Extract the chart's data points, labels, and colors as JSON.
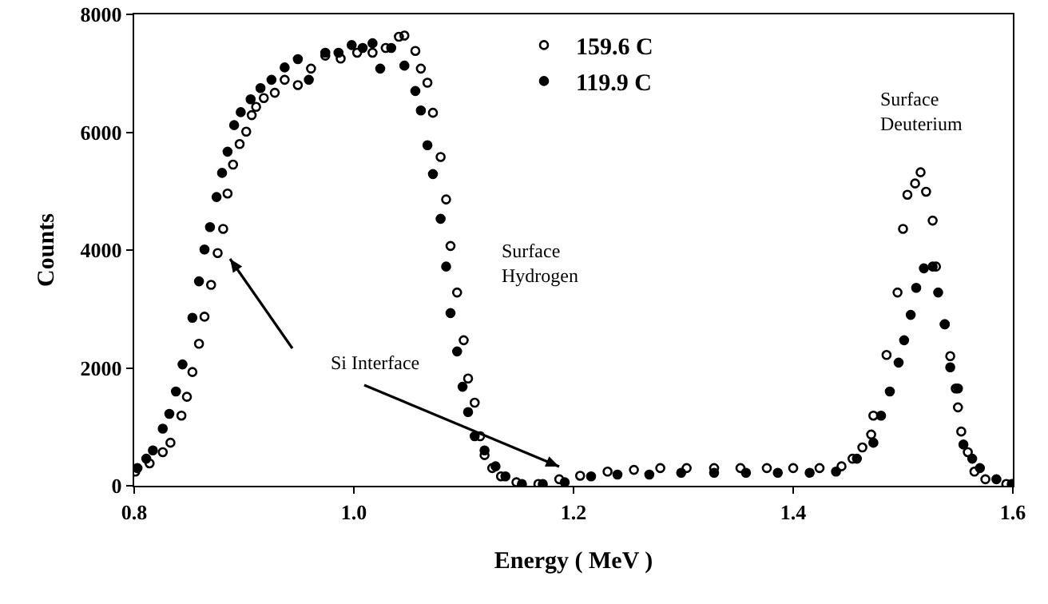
{
  "chart_data": {
    "type": "scatter",
    "xlabel": "Energy ( MeV )",
    "ylabel": "Counts",
    "xlim": [
      0.8,
      1.6
    ],
    "ylim": [
      0,
      8000
    ],
    "xticks": [
      0.8,
      {
        "value": 1,
        "label": "1.0"
      },
      1.2,
      1.4,
      1.6
    ],
    "yticks": [
      0,
      2000,
      4000,
      6000,
      8000
    ],
    "grid": false,
    "legend": "top",
    "marker": "circle",
    "series": [
      {
        "name": "159.6 C",
        "color": "#000000",
        "x": [
          0.801,
          0.814,
          0.826,
          0.833,
          0.843,
          0.848,
          0.853,
          0.859,
          0.864,
          0.87,
          0.876,
          0.881,
          0.885,
          0.89,
          0.896,
          0.902,
          0.907,
          0.911,
          0.918,
          0.928,
          0.937,
          0.949,
          0.961,
          0.974,
          0.988,
          1.003,
          1.017,
          1.029,
          1.041,
          1.046,
          1.056,
          1.061,
          1.067,
          1.072,
          1.079,
          1.084,
          1.088,
          1.094,
          1.1,
          1.104,
          1.11,
          1.115,
          1.119,
          1.126,
          1.134,
          1.148,
          1.168,
          1.187,
          1.206,
          1.231,
          1.255,
          1.279,
          1.303,
          1.328,
          1.352,
          1.376,
          1.4,
          1.424,
          1.444,
          1.454,
          1.463,
          1.471,
          1.473,
          1.485,
          1.495,
          1.5,
          1.504,
          1.511,
          1.516,
          1.521,
          1.527,
          1.53,
          1.538,
          1.543,
          1.548,
          1.55,
          1.553,
          1.559,
          1.565,
          1.575,
          1.594
        ],
        "values": [
          240,
          380,
          570,
          730,
          1190,
          1510,
          1930,
          2410,
          2870,
          3410,
          3950,
          4360,
          4960,
          5450,
          5800,
          6010,
          6290,
          6430,
          6580,
          6670,
          6890,
          6800,
          7080,
          7300,
          7250,
          7350,
          7350,
          7430,
          7620,
          7640,
          7380,
          7080,
          6840,
          6330,
          5580,
          4860,
          4070,
          3280,
          2470,
          1820,
          1410,
          840,
          520,
          300,
          160,
          60,
          30,
          110,
          170,
          240,
          270,
          300,
          300,
          300,
          300,
          300,
          300,
          300,
          330,
          460,
          650,
          870,
          1190,
          2220,
          3280,
          4360,
          4940,
          5130,
          5320,
          4990,
          4500,
          3720,
          2740,
          2200,
          1650,
          1330,
          920,
          570,
          240,
          110,
          30
        ]
      },
      {
        "name": "119.9 C",
        "color": "#000000",
        "x": [
          0.803,
          0.811,
          0.817,
          0.826,
          0.832,
          0.838,
          0.844,
          0.853,
          0.859,
          0.864,
          0.869,
          0.875,
          0.88,
          0.885,
          0.891,
          0.897,
          0.906,
          0.915,
          0.925,
          0.937,
          0.949,
          0.959,
          0.974,
          0.986,
          0.998,
          1.008,
          1.017,
          1.024,
          1.034,
          1.046,
          1.056,
          1.061,
          1.067,
          1.072,
          1.079,
          1.084,
          1.088,
          1.094,
          1.099,
          1.104,
          1.11,
          1.119,
          1.129,
          1.138,
          1.153,
          1.172,
          1.192,
          1.216,
          1.24,
          1.269,
          1.298,
          1.328,
          1.357,
          1.386,
          1.415,
          1.439,
          1.458,
          1.473,
          1.48,
          1.488,
          1.496,
          1.501,
          1.507,
          1.512,
          1.519,
          1.527,
          1.532,
          1.538,
          1.543,
          1.55,
          1.555,
          1.563,
          1.57,
          1.585,
          1.599
        ],
        "values": [
          300,
          460,
          600,
          970,
          1220,
          1600,
          2060,
          2850,
          3470,
          4010,
          4390,
          4900,
          5310,
          5670,
          6120,
          6340,
          6560,
          6750,
          6890,
          7100,
          7240,
          6890,
          7350,
          7350,
          7480,
          7430,
          7510,
          7080,
          7430,
          7130,
          6700,
          6370,
          5780,
          5290,
          4530,
          3720,
          2930,
          2280,
          1680,
          1250,
          840,
          600,
          330,
          160,
          30,
          30,
          60,
          160,
          190,
          190,
          220,
          220,
          220,
          220,
          220,
          240,
          460,
          730,
          1190,
          1600,
          2090,
          2470,
          2900,
          3360,
          3690,
          3720,
          3280,
          2740,
          2010,
          1650,
          700,
          460,
          300,
          110,
          30
        ]
      }
    ],
    "annotations": [
      "Surface Hydrogen",
      "Surface Deuterium",
      "Si Interface"
    ]
  }
}
